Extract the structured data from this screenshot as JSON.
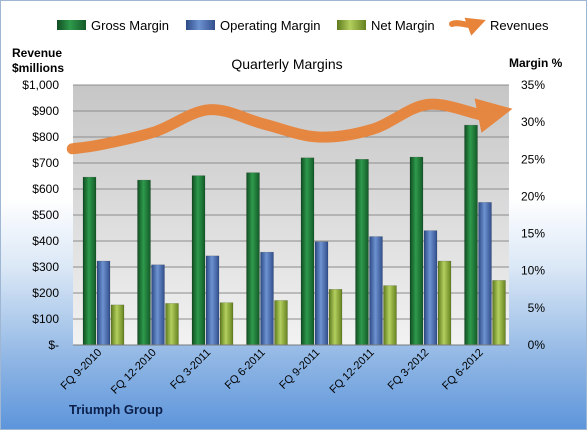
{
  "chart_data": {
    "type": "bar",
    "title": "Quarterly Margins",
    "ylabel_left": "Revenue $millions",
    "ylabel_right": "Margin %",
    "ylim_left": [
      0,
      1000
    ],
    "ylim_right": [
      0,
      35
    ],
    "left_ticks": [
      "$-",
      "$100",
      "$200",
      "$300",
      "$400",
      "$500",
      "$600",
      "$700",
      "$800",
      "$900",
      "$1,000"
    ],
    "right_ticks": [
      "0%",
      "5%",
      "10%",
      "15%",
      "20%",
      "25%",
      "30%",
      "35%"
    ],
    "categories": [
      "FQ 9-2010",
      "FQ 12-2010",
      "FQ 3-2011",
      "FQ 6-2011",
      "FQ 9-2011",
      "FQ 12-2011",
      "FQ 3-2012",
      "FQ 6-2012"
    ],
    "series": [
      {
        "name": "Gross Margin",
        "type": "bar",
        "axis": "right",
        "color": "#1f7a3a",
        "values": [
          22.6,
          22.2,
          22.8,
          23.2,
          25.2,
          25.0,
          25.3,
          29.6
        ]
      },
      {
        "name": "Operating Margin",
        "type": "bar",
        "axis": "right",
        "color": "#4a6fb0",
        "values": [
          11.3,
          10.8,
          12.0,
          12.5,
          13.9,
          14.6,
          15.4,
          19.2
        ]
      },
      {
        "name": "Net Margin",
        "type": "bar",
        "axis": "right",
        "color": "#8fae3c",
        "values": [
          5.4,
          5.6,
          5.7,
          6.0,
          7.5,
          8.0,
          11.3,
          8.7
        ]
      },
      {
        "name": "Revenues",
        "type": "line",
        "axis": "left",
        "color": "#e8843a",
        "values": [
          770,
          820,
          905,
          850,
          800,
          830,
          925,
          885
        ]
      }
    ],
    "legend_position": "top",
    "grid": true
  },
  "footer": {
    "company": "Triumph Group"
  }
}
